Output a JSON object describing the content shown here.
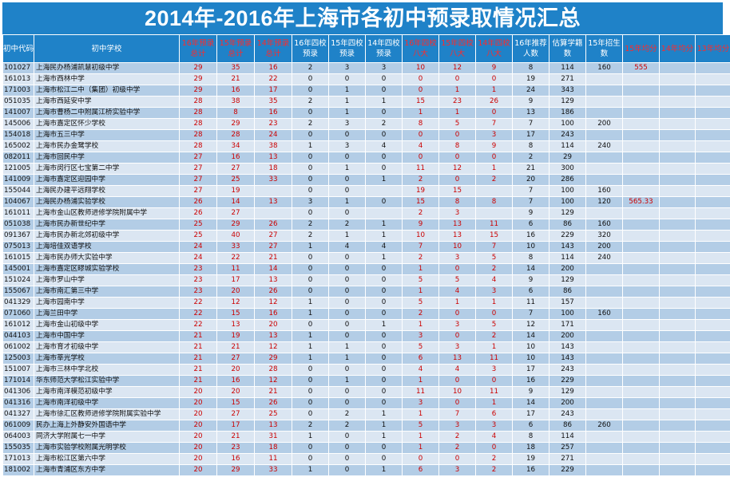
{
  "title": "2014年-2016年上海市各初中预录取情况汇总",
  "columns": [
    {
      "label": "初中代码",
      "red": false
    },
    {
      "label": "初中学校",
      "red": false
    },
    {
      "label": "16年预录总计",
      "red": true
    },
    {
      "label": "15年预录总计",
      "red": true
    },
    {
      "label": "14年预录总计",
      "red": true
    },
    {
      "label": "16年四校预录",
      "red": false
    },
    {
      "label": "15年四校预录",
      "red": false
    },
    {
      "label": "14年四校预录",
      "red": false
    },
    {
      "label": "16年四校八大",
      "red": true
    },
    {
      "label": "15年四校八大",
      "red": true
    },
    {
      "label": "14年四校八大",
      "red": true
    },
    {
      "label": "16年推荐人数",
      "red": false
    },
    {
      "label": "估算学籍数",
      "red": false
    },
    {
      "label": "15年招生数",
      "red": false
    },
    {
      "label": "15年均分",
      "red": true
    },
    {
      "label": "14年均分",
      "red": true
    },
    {
      "label": "13年均分",
      "red": true
    }
  ],
  "rows": [
    [
      "101027",
      "上海民办杨浦凯慧初级中学",
      "29",
      "35",
      "16",
      "2",
      "3",
      "3",
      "10",
      "12",
      "9",
      "8",
      "114",
      "160",
      "555",
      "",
      ""
    ],
    [
      "161013",
      "上海市西林中学",
      "29",
      "21",
      "22",
      "0",
      "0",
      "0",
      "0",
      "0",
      "0",
      "19",
      "271",
      "",
      "",
      "",
      ""
    ],
    [
      "171003",
      "上海市松江二中（集团）初级中学",
      "29",
      "16",
      "17",
      "0",
      "1",
      "0",
      "0",
      "1",
      "1",
      "24",
      "343",
      "",
      "",
      "",
      ""
    ],
    [
      "051035",
      "上海市西延安中学",
      "28",
      "38",
      "35",
      "2",
      "1",
      "1",
      "15",
      "23",
      "26",
      "9",
      "129",
      "",
      "",
      "",
      ""
    ],
    [
      "141007",
      "上海市曹杨二中附属江桥实验中学",
      "28",
      "8",
      "16",
      "0",
      "1",
      "0",
      "1",
      "1",
      "0",
      "13",
      "186",
      "",
      "",
      "",
      ""
    ],
    [
      "145006",
      "上海市嘉定区怀少学校",
      "28",
      "29",
      "23",
      "2",
      "3",
      "2",
      "8",
      "5",
      "7",
      "7",
      "100",
      "200",
      "",
      "",
      ""
    ],
    [
      "154018",
      "上海市五三中学",
      "28",
      "28",
      "24",
      "0",
      "0",
      "0",
      "0",
      "0",
      "3",
      "17",
      "243",
      "",
      "",
      "",
      ""
    ],
    [
      "165002",
      "上海市民办金鹭学校",
      "28",
      "34",
      "38",
      "1",
      "3",
      "4",
      "4",
      "8",
      "9",
      "8",
      "114",
      "240",
      "",
      "",
      ""
    ],
    [
      "082011",
      "上海市回民中学",
      "27",
      "16",
      "13",
      "0",
      "0",
      "0",
      "0",
      "0",
      "0",
      "2",
      "29",
      "",
      "",
      "",
      ""
    ],
    [
      "121005",
      "上海市闵行区七宝第二中学",
      "27",
      "27",
      "18",
      "0",
      "1",
      "0",
      "11",
      "12",
      "1",
      "21",
      "300",
      "",
      "",
      "",
      ""
    ],
    [
      "141009",
      "上海市嘉定区迎园中学",
      "27",
      "25",
      "33",
      "0",
      "0",
      "1",
      "2",
      "0",
      "2",
      "20",
      "286",
      "",
      "",
      "",
      ""
    ],
    [
      "155044",
      "上海民办建平远翔学校",
      "27",
      "19",
      "",
      "0",
      "0",
      "",
      "19",
      "15",
      "",
      "7",
      "100",
      "160",
      "",
      "",
      ""
    ],
    [
      "104067",
      "上海民办杨浦实验学校",
      "26",
      "14",
      "13",
      "3",
      "1",
      "0",
      "15",
      "8",
      "8",
      "7",
      "100",
      "120",
      "565.33",
      "",
      ""
    ],
    [
      "161011",
      "上海市金山区教师进修学院附属中学",
      "26",
      "27",
      "",
      "0",
      "0",
      "",
      "2",
      "3",
      "",
      "9",
      "129",
      "",
      "",
      "",
      ""
    ],
    [
      "051038",
      "上海市民办新世纪中学",
      "25",
      "29",
      "26",
      "2",
      "2",
      "1",
      "9",
      "13",
      "11",
      "6",
      "86",
      "160",
      "",
      "",
      ""
    ],
    [
      "091367",
      "上海市民办新北郊初级中学",
      "25",
      "40",
      "27",
      "2",
      "1",
      "1",
      "10",
      "13",
      "15",
      "16",
      "229",
      "320",
      "",
      "",
      ""
    ],
    [
      "075013",
      "上海培佳双语学校",
      "24",
      "33",
      "27",
      "1",
      "4",
      "4",
      "7",
      "10",
      "7",
      "10",
      "143",
      "200",
      "",
      "",
      ""
    ],
    [
      "161015",
      "上海市民办师大实验中学",
      "24",
      "22",
      "21",
      "0",
      "0",
      "1",
      "2",
      "3",
      "5",
      "8",
      "114",
      "240",
      "",
      "",
      ""
    ],
    [
      "145001",
      "上海市嘉定区疁城实验学校",
      "23",
      "11",
      "14",
      "0",
      "0",
      "0",
      "1",
      "0",
      "2",
      "14",
      "200",
      "",
      "",
      "",
      ""
    ],
    [
      "151024",
      "上海市罗山中学",
      "23",
      "17",
      "13",
      "0",
      "0",
      "0",
      "5",
      "5",
      "4",
      "9",
      "129",
      "",
      "",
      "",
      ""
    ],
    [
      "155067",
      "上海市南汇第三中学",
      "23",
      "20",
      "26",
      "0",
      "0",
      "0",
      "1",
      "4",
      "3",
      "6",
      "86",
      "",
      "",
      "",
      ""
    ],
    [
      "041329",
      "上海市园南中学",
      "22",
      "12",
      "12",
      "1",
      "0",
      "0",
      "5",
      "1",
      "1",
      "11",
      "157",
      "",
      "",
      "",
      ""
    ],
    [
      "071060",
      "上海兰田中学",
      "22",
      "15",
      "16",
      "1",
      "0",
      "0",
      "2",
      "0",
      "0",
      "7",
      "100",
      "160",
      "",
      "",
      ""
    ],
    [
      "161012",
      "上海市金山初级中学",
      "22",
      "13",
      "20",
      "0",
      "0",
      "1",
      "1",
      "3",
      "5",
      "12",
      "171",
      "",
      "",
      "",
      ""
    ],
    [
      "044103",
      "上海市中国中学",
      "21",
      "19",
      "13",
      "1",
      "0",
      "0",
      "3",
      "0",
      "2",
      "14",
      "200",
      "",
      "",
      "",
      ""
    ],
    [
      "061002",
      "上海市育才初级中学",
      "21",
      "21",
      "12",
      "1",
      "1",
      "0",
      "5",
      "3",
      "1",
      "10",
      "143",
      "",
      "",
      "",
      ""
    ],
    [
      "125003",
      "上海市莘光学校",
      "21",
      "27",
      "29",
      "1",
      "1",
      "0",
      "6",
      "13",
      "11",
      "10",
      "143",
      "",
      "",
      "",
      ""
    ],
    [
      "151007",
      "上海市三林中学北校",
      "21",
      "20",
      "28",
      "0",
      "0",
      "0",
      "4",
      "4",
      "3",
      "17",
      "243",
      "",
      "",
      "",
      ""
    ],
    [
      "171014",
      "华东师范大学松江实验中学",
      "21",
      "16",
      "12",
      "0",
      "1",
      "0",
      "1",
      "0",
      "0",
      "16",
      "229",
      "",
      "",
      "",
      ""
    ],
    [
      "041306",
      "上海市南洋模范初级中学",
      "20",
      "20",
      "21",
      "0",
      "0",
      "0",
      "11",
      "10",
      "11",
      "9",
      "129",
      "",
      "",
      "",
      ""
    ],
    [
      "041316",
      "上海市南洋初级中学",
      "20",
      "15",
      "26",
      "0",
      "0",
      "0",
      "3",
      "0",
      "1",
      "14",
      "200",
      "",
      "",
      "",
      ""
    ],
    [
      "041327",
      "上海市徐汇区教师进修学院附属实验中学",
      "20",
      "27",
      "25",
      "0",
      "2",
      "1",
      "1",
      "7",
      "6",
      "17",
      "243",
      "",
      "",
      "",
      ""
    ],
    [
      "061009",
      "民办上海上外静安外国语中学",
      "20",
      "17",
      "13",
      "2",
      "2",
      "1",
      "5",
      "3",
      "3",
      "6",
      "86",
      "260",
      "",
      "",
      ""
    ],
    [
      "064003",
      "同济大学附属七一中学",
      "20",
      "21",
      "31",
      "1",
      "0",
      "1",
      "1",
      "2",
      "4",
      "8",
      "114",
      "",
      "",
      "",
      ""
    ],
    [
      "155035",
      "上海市实验学校附属光明学校",
      "20",
      "23",
      "18",
      "0",
      "0",
      "0",
      "1",
      "2",
      "0",
      "18",
      "257",
      "",
      "",
      "",
      ""
    ],
    [
      "171013",
      "上海市松江区第六中学",
      "20",
      "16",
      "11",
      "0",
      "0",
      "0",
      "0",
      "0",
      "2",
      "19",
      "271",
      "",
      "",
      "",
      ""
    ],
    [
      "181002",
      "上海市青浦区东方中学",
      "20",
      "29",
      "33",
      "1",
      "0",
      "1",
      "6",
      "3",
      "2",
      "16",
      "229",
      "",
      "",
      "",
      ""
    ]
  ]
}
